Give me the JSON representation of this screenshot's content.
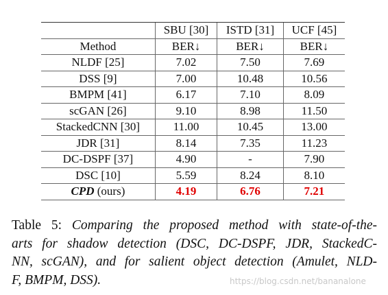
{
  "table": {
    "datasets": [
      "SBU [30]",
      "ISTD [31]",
      "UCF [45]"
    ],
    "method_header": "Method",
    "metric": "BER↓",
    "rows": [
      [
        "NLDF [25]",
        "7.02",
        "7.50",
        "7.69"
      ],
      [
        "DSS [9]",
        "7.00",
        "10.48",
        "10.56"
      ],
      [
        "BMPM [41]",
        "6.17",
        "7.10",
        "8.09"
      ],
      [
        "scGAN [26]",
        "9.10",
        "8.98",
        "11.50"
      ],
      [
        "StackedCNN [30]",
        "11.00",
        "10.45",
        "13.00"
      ],
      [
        "JDR [31]",
        "8.14",
        "7.35",
        "11.23"
      ],
      [
        "DC-DSPF [37]",
        "4.90",
        "-",
        "7.90"
      ],
      [
        "DSC [10]",
        "5.59",
        "8.24",
        "8.10"
      ]
    ],
    "highlight_row": {
      "method": "CPD",
      "suffix": "(ours)",
      "values": [
        "4.19",
        "6.76",
        "7.21"
      ]
    }
  },
  "caption": {
    "label": "Table 5:",
    "lines": [
      "Comparing the proposed method with state-of-the-",
      "arts for shadow detection (DSC, DC-DSPF, JDR, StackedC-",
      "NN, scGAN), and for salient object detection (Amulet, NLD-",
      "F, BMPM, DSS)."
    ]
  },
  "watermark": "https://blog.csdn.net/bananalone"
}
